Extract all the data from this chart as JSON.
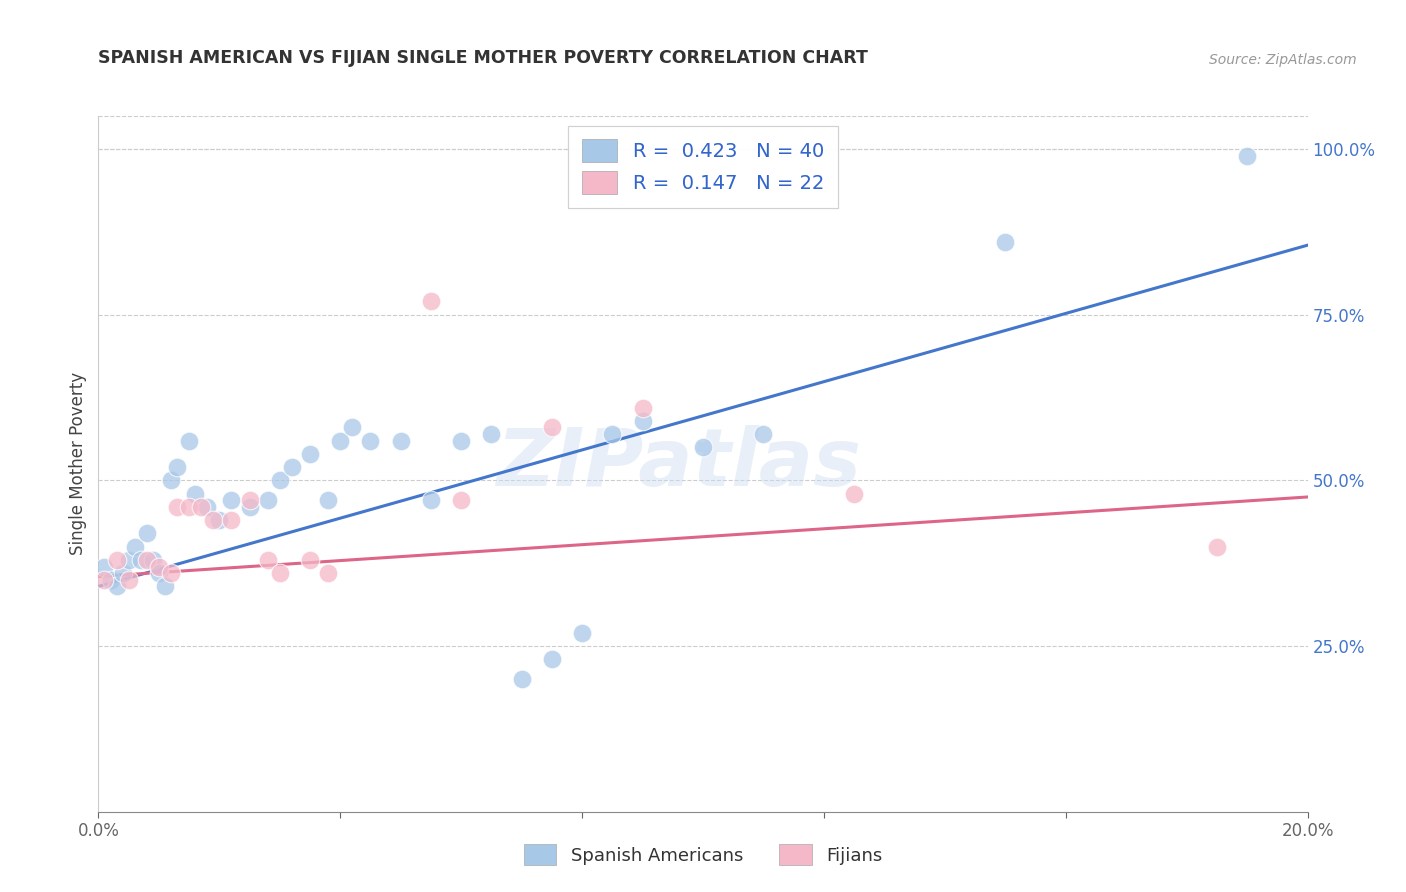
{
  "title": "SPANISH AMERICAN VS FIJIAN SINGLE MOTHER POVERTY CORRELATION CHART",
  "source": "Source: ZipAtlas.com",
  "ylabel": "Single Mother Poverty",
  "x_min": 0.0,
  "x_max": 0.2,
  "y_min": 0.0,
  "y_max": 1.05,
  "y_ticks": [
    0.25,
    0.5,
    0.75,
    1.0
  ],
  "y_tick_labels": [
    "25.0%",
    "50.0%",
    "75.0%",
    "100.0%"
  ],
  "blue_scatter_color": "#a8c8e8",
  "pink_scatter_color": "#f5b8c8",
  "blue_line_color": "#4477cc",
  "pink_line_color": "#dd6688",
  "blue_line_x": [
    0.0,
    0.2
  ],
  "blue_line_y": [
    0.34,
    0.855
  ],
  "pink_line_x": [
    0.0,
    0.2
  ],
  "pink_line_y": [
    0.355,
    0.475
  ],
  "legend_blue_R": "0.423",
  "legend_blue_N": "40",
  "legend_pink_R": "0.147",
  "legend_pink_N": "22",
  "watermark_text": "ZIPatlas",
  "spanish_x": [
    0.001,
    0.002,
    0.003,
    0.004,
    0.005,
    0.006,
    0.007,
    0.008,
    0.009,
    0.01,
    0.011,
    0.012,
    0.013,
    0.015,
    0.016,
    0.018,
    0.02,
    0.022,
    0.025,
    0.028,
    0.03,
    0.032,
    0.035,
    0.038,
    0.04,
    0.042,
    0.045,
    0.05,
    0.055,
    0.06,
    0.065,
    0.07,
    0.075,
    0.08,
    0.085,
    0.09,
    0.1,
    0.11,
    0.15,
    0.19
  ],
  "spanish_y": [
    0.37,
    0.35,
    0.34,
    0.36,
    0.38,
    0.4,
    0.38,
    0.42,
    0.38,
    0.36,
    0.34,
    0.5,
    0.52,
    0.56,
    0.48,
    0.46,
    0.44,
    0.47,
    0.46,
    0.47,
    0.5,
    0.52,
    0.54,
    0.47,
    0.56,
    0.58,
    0.56,
    0.56,
    0.47,
    0.56,
    0.57,
    0.2,
    0.23,
    0.27,
    0.57,
    0.59,
    0.55,
    0.57,
    0.86,
    0.99
  ],
  "fijian_x": [
    0.001,
    0.003,
    0.005,
    0.008,
    0.01,
    0.012,
    0.013,
    0.015,
    0.017,
    0.019,
    0.022,
    0.025,
    0.028,
    0.03,
    0.035,
    0.038,
    0.055,
    0.06,
    0.075,
    0.09,
    0.125,
    0.185
  ],
  "fijian_y": [
    0.35,
    0.38,
    0.35,
    0.38,
    0.37,
    0.36,
    0.46,
    0.46,
    0.46,
    0.44,
    0.44,
    0.47,
    0.38,
    0.36,
    0.38,
    0.36,
    0.77,
    0.47,
    0.58,
    0.61,
    0.48,
    0.4
  ]
}
